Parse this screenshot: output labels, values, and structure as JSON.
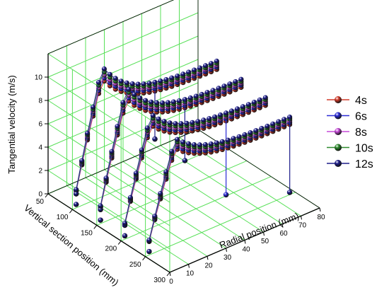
{
  "chart_data": {
    "type": "scatter3d",
    "title": "",
    "axes": {
      "z": {
        "label": "Tangential velocity (m/s)",
        "range": [
          0,
          12
        ],
        "ticks": [
          "0",
          "2",
          "4",
          "6",
          "8",
          "10"
        ]
      },
      "x": {
        "label": "Vertical section position (mm)",
        "range": [
          50,
          300
        ],
        "ticks": [
          "50",
          "100",
          "150",
          "200",
          "250",
          "300"
        ]
      },
      "y": {
        "label": "Radial position (mm)",
        "range": [
          0,
          80
        ],
        "ticks": [
          "0",
          "10",
          "20",
          "30",
          "40",
          "50",
          "60",
          "70",
          "80"
        ]
      }
    },
    "grid": true,
    "grid_color": "#58e058",
    "legend": {
      "placement": "right"
    },
    "series": [
      {
        "name": "4s",
        "color": "#d23b2a"
      },
      {
        "name": "6s",
        "color": "#2b2bd6"
      },
      {
        "name": "8s",
        "color": "#c64ad8"
      },
      {
        "name": "10s",
        "color": "#2e8b2e"
      },
      {
        "name": "12s",
        "color": "#1d1d8a"
      }
    ],
    "profile": {
      "sections_mm": [
        100,
        150,
        200,
        250
      ],
      "radial_mm": [
        2,
        5,
        8,
        11,
        14,
        17,
        20,
        23,
        26,
        29,
        32,
        35,
        38,
        41,
        44,
        47,
        50,
        53,
        56,
        59,
        62,
        65,
        68,
        71,
        74,
        77
      ],
      "peak_velocity_mps": [
        10.6,
        10.2,
        9.3,
        8.6
      ],
      "outer_velocity_mps": [
        7.0,
        6.8,
        6.6,
        6.3
      ],
      "falloff_points": [
        {
          "series": "12s",
          "section_mm": 250,
          "radial_mm": 77,
          "velocity_mps": 0.2
        },
        {
          "series": "6s",
          "section_mm": 200,
          "radial_mm": 56,
          "velocity_mps": 0.1
        },
        {
          "series": "12s",
          "section_mm": 150,
          "radial_mm": 47,
          "velocity_mps": 2.3
        },
        {
          "series": "12s",
          "section_mm": 100,
          "radial_mm": 44,
          "velocity_mps": 3.0
        }
      ]
    }
  }
}
